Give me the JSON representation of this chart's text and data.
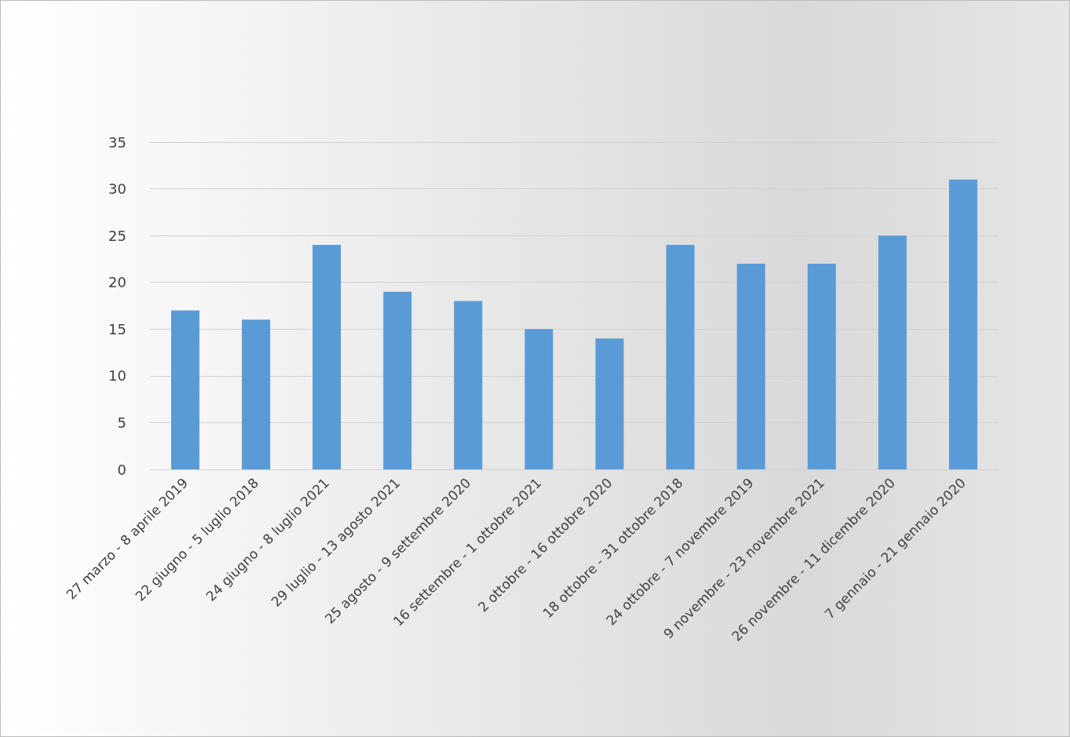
{
  "chart_data": {
    "type": "bar",
    "categories": [
      "27 marzo - 8 aprile 2019",
      "22 giugno - 5 luglio 2018",
      "24 giugno - 8 luglio 2021",
      "29 luglio - 13 agosto 2021",
      "25 agosto - 9 settembre 2020",
      "16 settembre - 1 ottobre 2021",
      "2 ottobre - 16 ottobre 2020",
      "18 ottobre - 31 ottobre 2018",
      "24 ottobre - 7 novembre 2019",
      "9 novembre - 23 novembre 2021",
      "26 novembre - 11 dicembre 2020",
      "7 gennaio - 21 gennaio 2020"
    ],
    "values": [
      17,
      16,
      24,
      19,
      18,
      15,
      14,
      24,
      22,
      22,
      25,
      31
    ],
    "color": "#5b9bd5",
    "ylim": [
      0,
      35
    ],
    "yticks": [
      0,
      5,
      10,
      15,
      20,
      25,
      30,
      35
    ],
    "grid": true
  }
}
